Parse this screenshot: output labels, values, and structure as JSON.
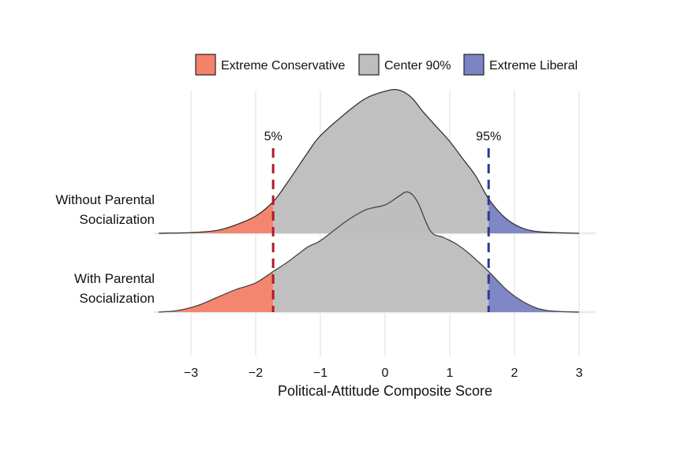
{
  "chart_data": {
    "type": "ridgeline",
    "xlabel": "Political-Attitude Composite Score",
    "xlim": [
      -3.5,
      3.0
    ],
    "xticks": [
      -3,
      -2,
      -1,
      0,
      1,
      2,
      3
    ],
    "xtick_labels": [
      "−3",
      "−2",
      "−1",
      "0",
      "1",
      "2",
      "3"
    ],
    "grid": "vertical",
    "legend": {
      "placement": "top",
      "entries": [
        {
          "label": "Extreme Conservative",
          "color": "#F4826A"
        },
        {
          "label": "Center 90%",
          "color": "#BEBEBE"
        },
        {
          "label": "Extreme Liberal",
          "color": "#7C83C4"
        }
      ]
    },
    "cutoffs": [
      {
        "label": "5%",
        "x": -1.73,
        "color": "#B2182B"
      },
      {
        "label": "95%",
        "x": 1.6,
        "color": "#2C3A94"
      }
    ],
    "series": [
      {
        "name": "Without Parental Socialization",
        "x": [
          -3.5,
          -3.0,
          -2.6,
          -2.3,
          -2.0,
          -1.73,
          -1.5,
          -1.2,
          -1.0,
          -0.6,
          -0.3,
          0.0,
          0.2,
          0.4,
          0.6,
          0.8,
          1.0,
          1.2,
          1.4,
          1.6,
          1.85,
          2.1,
          2.4,
          3.0
        ],
        "density": [
          0.0,
          0.005,
          0.02,
          0.06,
          0.12,
          0.22,
          0.36,
          0.56,
          0.68,
          0.84,
          0.94,
          0.99,
          1.0,
          0.95,
          0.84,
          0.74,
          0.64,
          0.52,
          0.4,
          0.24,
          0.11,
          0.04,
          0.01,
          0.0
        ]
      },
      {
        "name": "With Parental Socialization",
        "x": [
          -3.5,
          -3.2,
          -2.9,
          -2.6,
          -2.3,
          -2.0,
          -1.73,
          -1.5,
          -1.2,
          -1.0,
          -0.6,
          -0.3,
          0.0,
          0.2,
          0.35,
          0.5,
          0.7,
          0.9,
          1.1,
          1.3,
          1.6,
          1.9,
          2.2,
          2.5,
          3.0
        ],
        "density": [
          0.0,
          0.02,
          0.08,
          0.18,
          0.28,
          0.36,
          0.5,
          0.62,
          0.8,
          0.88,
          1.12,
          1.26,
          1.32,
          1.42,
          1.48,
          1.36,
          1.0,
          0.92,
          0.84,
          0.72,
          0.5,
          0.26,
          0.1,
          0.02,
          0.0
        ]
      }
    ]
  }
}
